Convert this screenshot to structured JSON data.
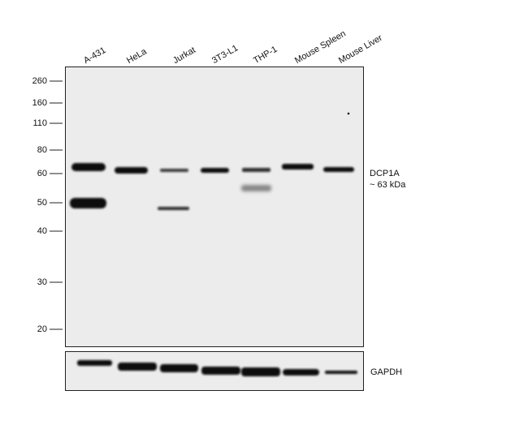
{
  "lanes": [
    "A-431",
    "HeLa",
    "Jurkat",
    "3T3-L1",
    "THP-1",
    "Mouse Spleen",
    "Mouse Liver"
  ],
  "markers": [
    260,
    160,
    110,
    80,
    60,
    50,
    40,
    30,
    20
  ],
  "target": {
    "name": "DCP1A",
    "size": "~ 63 kDa"
  },
  "loading_control": "GAPDH"
}
